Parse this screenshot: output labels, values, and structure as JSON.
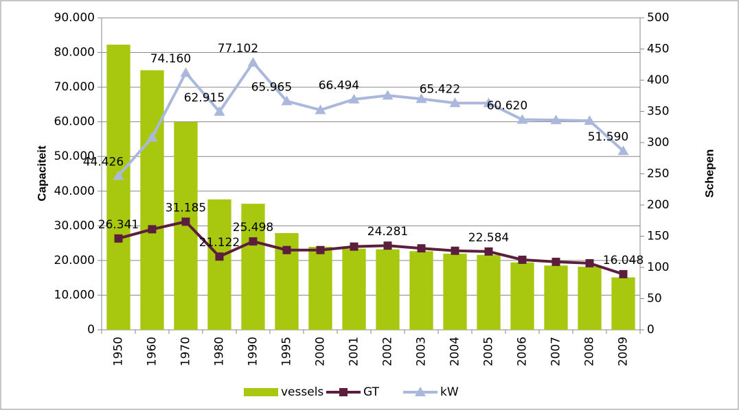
{
  "chart_data": {
    "type": "bar-line",
    "categories": [
      "1950",
      "1960",
      "1970",
      "1980",
      "1990",
      "1995",
      "2000",
      "2001",
      "2002",
      "2003",
      "2004",
      "2005",
      "2006",
      "2007",
      "2008",
      "2009"
    ],
    "ylabel": "Capaciteit",
    "y2label": "Schepen",
    "ylim": [
      0,
      90000
    ],
    "yticks": [
      0,
      {
        "value": 10000,
        "label": "10.000"
      },
      {
        "value": 20000,
        "label": "20.000"
      },
      {
        "value": 30000,
        "label": "30.000"
      },
      {
        "value": 40000,
        "label": "40.000"
      },
      {
        "value": 50000,
        "label": "50.000"
      },
      {
        "value": 60000,
        "label": "60.000"
      },
      {
        "value": 70000,
        "label": "70.000"
      },
      {
        "value": 80000,
        "label": "80.000"
      },
      {
        "value": 90000,
        "label": "90.000"
      }
    ],
    "y2lim": [
      0,
      500
    ],
    "y2ticks": [
      0,
      50,
      100,
      150,
      200,
      250,
      300,
      350,
      400,
      450,
      500
    ],
    "grid": true,
    "legend": "bottom",
    "series": [
      {
        "name": "vessels",
        "kind": "bar",
        "axis": "y2",
        "color": "#a8c70f",
        "values": [
          457,
          416,
          333,
          209,
          202,
          155,
          133,
          130,
          129,
          126,
          122,
          120,
          108,
          103,
          101,
          84
        ]
      },
      {
        "name": "GT",
        "kind": "line",
        "marker": "square",
        "color": "#5b1f3d",
        "values": [
          26341,
          29000,
          31185,
          21122,
          25498,
          23000,
          23000,
          24000,
          24281,
          23500,
          22800,
          22584,
          20200,
          19600,
          19200,
          16048
        ],
        "value_labels": [
          "26.341",
          null,
          "31.185",
          "21.122",
          "25.498",
          null,
          null,
          null,
          "24.281",
          null,
          null,
          "22.584",
          null,
          null,
          null,
          "16.048"
        ]
      },
      {
        "name": "kW",
        "kind": "line",
        "marker": "triangle",
        "color": "#aab8dc",
        "values": [
          44426,
          55500,
          74160,
          62915,
          77102,
          65965,
          63400,
          66494,
          67600,
          66600,
          65422,
          65400,
          60620,
          60500,
          60300,
          51590
        ],
        "value_labels": [
          "44.426",
          null,
          "74.160",
          "62.915",
          "77.102",
          "65.965",
          null,
          "66.494",
          null,
          null,
          "65.422",
          null,
          "60.620",
          null,
          null,
          "51.590"
        ]
      }
    ]
  }
}
